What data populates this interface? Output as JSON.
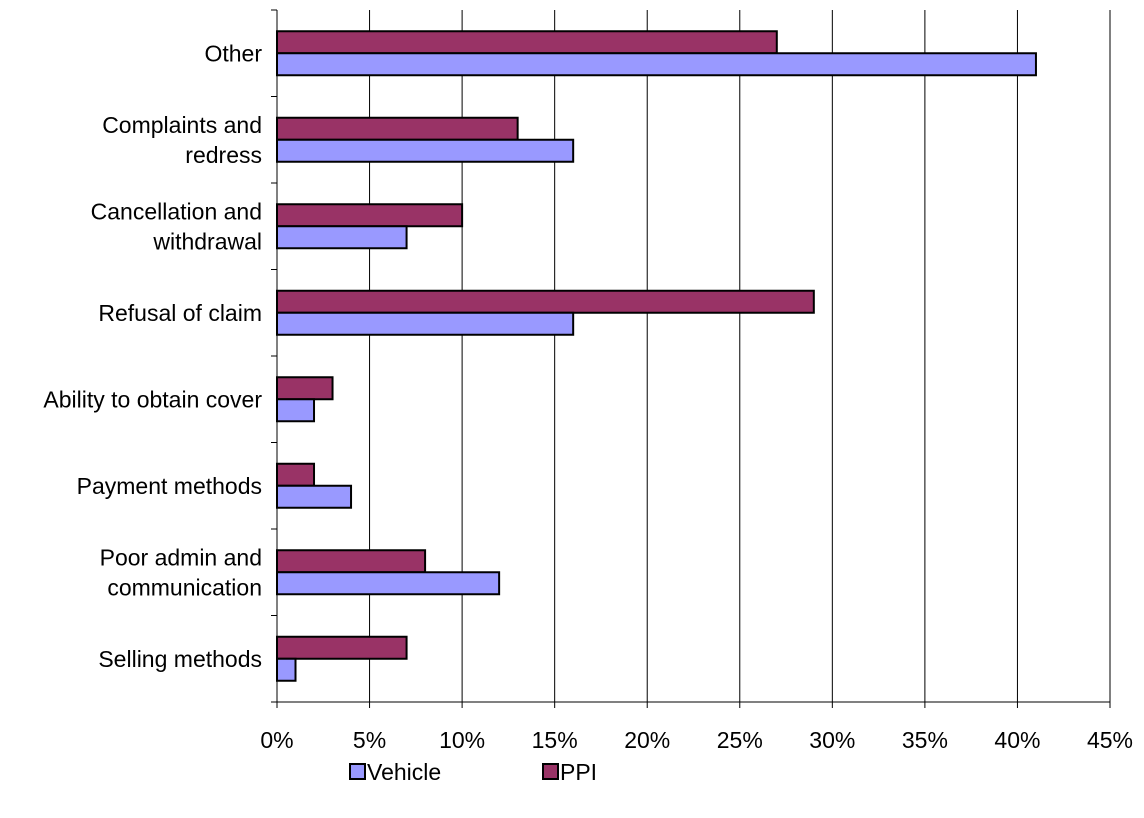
{
  "chart_data": {
    "type": "bar",
    "orientation": "horizontal",
    "categories": [
      [
        "Other"
      ],
      [
        "Complaints and",
        "redress"
      ],
      [
        "Cancellation and",
        "withdrawal"
      ],
      [
        "Refusal of claim"
      ],
      [
        "Ability to obtain cover"
      ],
      [
        "Payment methods"
      ],
      [
        "Poor admin and",
        "communication"
      ],
      [
        "Selling methods"
      ]
    ],
    "series": [
      {
        "name": "PPI",
        "color": "#993366",
        "values": [
          27,
          13,
          10,
          29,
          3,
          2,
          8,
          7
        ]
      },
      {
        "name": "Vehicle",
        "color": "#9999ff",
        "values": [
          41,
          16,
          7,
          16,
          2,
          4,
          12,
          1
        ]
      }
    ],
    "xlim": [
      0,
      45
    ],
    "xticks": [
      0,
      5,
      10,
      15,
      20,
      25,
      30,
      35,
      40,
      45
    ],
    "tick_format": "percent",
    "grid": true,
    "legend": {
      "placement": "bottom",
      "order": [
        "Vehicle",
        "PPI"
      ]
    },
    "title": "",
    "xlabel": "",
    "ylabel": ""
  }
}
